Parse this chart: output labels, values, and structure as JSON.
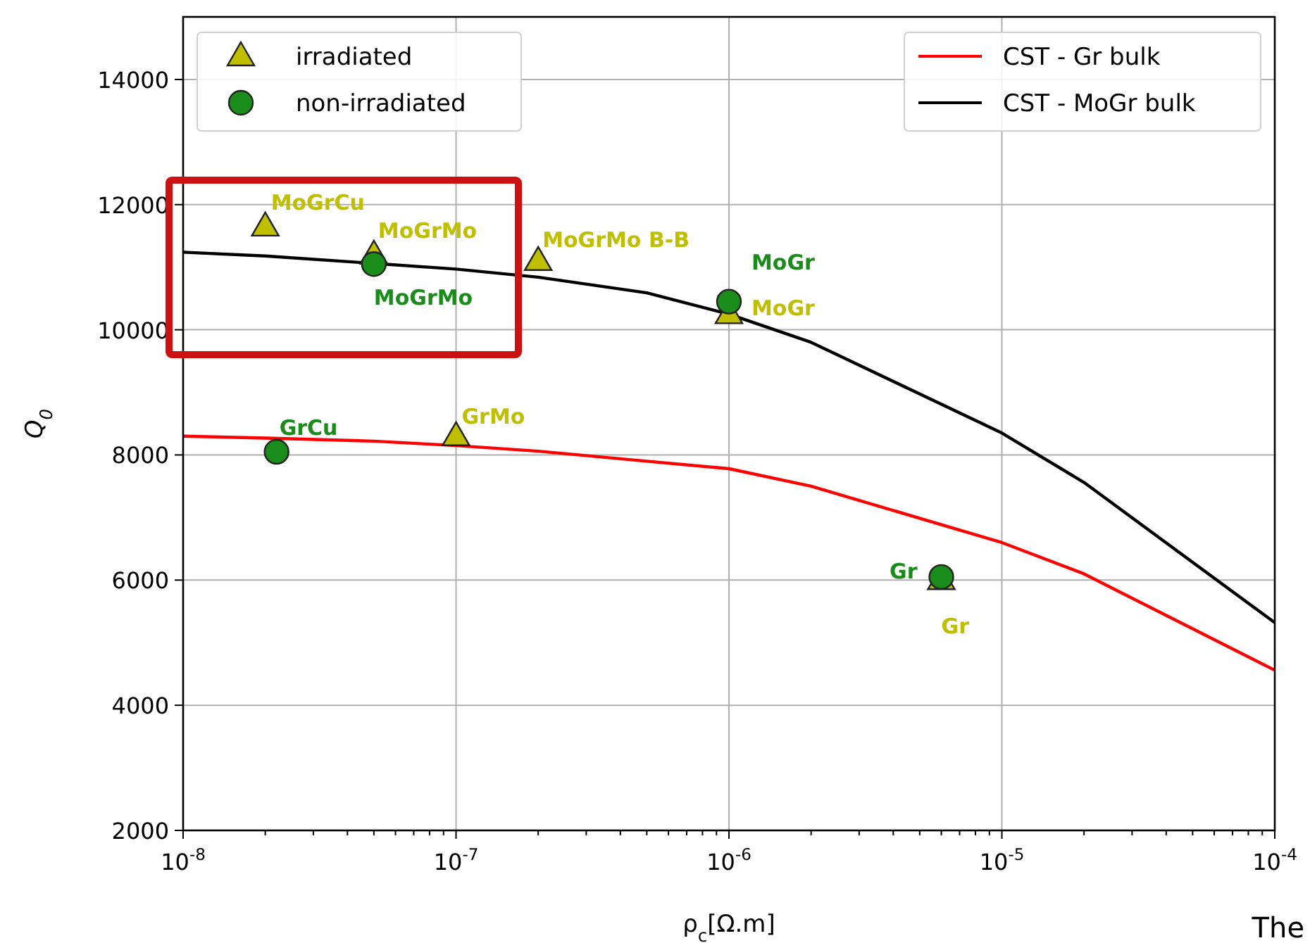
{
  "chart_data": {
    "type": "scatter",
    "xlabel": "ρ$_{c}$[Ω.m]",
    "ylabel": "Q$_{0}$",
    "log": "x",
    "grid": true,
    "legend": "top",
    "xlim": [
      1e-08,
      0.0001
    ],
    "ylim": [
      2000,
      15000
    ],
    "xticks": [
      {
        "value": 1e-08,
        "label": "10$^{-8}$"
      },
      {
        "value": 1e-07,
        "label": "10$^{-7}$"
      },
      {
        "value": 1e-06,
        "label": "10$^{-6}$"
      },
      {
        "value": 1e-05,
        "label": "10$^{-5}$"
      },
      {
        "value": 0.0001,
        "label": "10$^{-4}$"
      }
    ],
    "yticks": [
      2000,
      4000,
      6000,
      8000,
      10000,
      12000,
      14000
    ],
    "series": [
      {
        "name": "CST - Gr bulk",
        "type": "line",
        "color": "#ff0000",
        "x": [
          1e-08,
          2e-08,
          5e-08,
          1e-07,
          2e-07,
          5e-07,
          1e-06,
          2e-06,
          1e-05,
          2e-05,
          0.0001
        ],
        "values": [
          8300,
          8270,
          8220,
          8150,
          8060,
          7900,
          7780,
          7500,
          6600,
          6100,
          4560
        ]
      },
      {
        "name": "CST - MoGr bulk",
        "type": "line",
        "color": "#000000",
        "x": [
          1e-08,
          2e-08,
          1e-07,
          2e-07,
          5e-07,
          1e-06,
          2e-06,
          1e-05,
          2e-05,
          0.0001
        ],
        "values": [
          11240,
          11180,
          10970,
          10840,
          10590,
          10250,
          9800,
          8350,
          7560,
          5320
        ]
      },
      {
        "name": "irradiated",
        "marker": "triangle",
        "color": "#bfbf00",
        "x": [
          2e-08,
          5e-08,
          2e-07,
          1e-07,
          1e-06,
          6e-06
        ],
        "values": [
          11650,
          11200,
          11100,
          8300,
          10250,
          6000
        ],
        "value_labels": [
          "MoGrCu",
          "MoGrMo",
          "MoGrMo B-B",
          "GrMo",
          "MoGr",
          "Gr"
        ]
      },
      {
        "name": "non-irradiated",
        "marker": "circle",
        "color": "#1a8c1a",
        "x": [
          2.2e-08,
          5e-08,
          1e-06,
          6e-06
        ],
        "values": [
          8050,
          11050,
          10450,
          6050
        ],
        "value_labels": [
          "GrCu",
          "MoGrMo",
          "MoGr",
          "Gr"
        ]
      }
    ],
    "annotations": [
      "The"
    ]
  }
}
